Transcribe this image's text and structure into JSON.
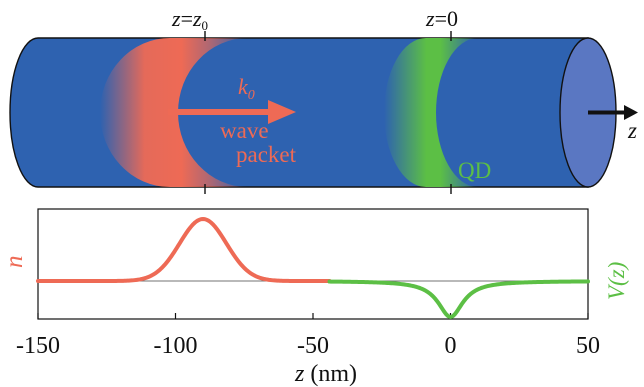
{
  "top_labels": {
    "z0": {
      "z": "z",
      "eq": "=",
      "zsub": "z",
      "sub": "0"
    },
    "zzero": {
      "z": "z",
      "eq": "=0"
    }
  },
  "cylinder": {
    "body_color": "#2e62b0",
    "end_cap_color": "#5a77c2",
    "wave_color": "#ee6a55",
    "qd_color": "#5cbf45"
  },
  "annotations": {
    "k_label": "k",
    "k_sub": "0",
    "wave_line1": "wave",
    "wave_line2": "packet",
    "qd_label": "QD",
    "axis_arrow_label": "z"
  },
  "left_axis_label": "n",
  "right_axis_label": "V(z)",
  "x_axis": {
    "label_var": "z",
    "label_unit": " (nm)",
    "ticks": [
      -150,
      -100,
      -50,
      0,
      50
    ],
    "range": [
      -150,
      50
    ]
  },
  "chart_data": {
    "type": "line",
    "xrange": [
      -150,
      50
    ],
    "series": [
      {
        "name": "n",
        "color": "#ee6a55",
        "shape": "gaussian",
        "center": -90,
        "width": 8.5,
        "amplitude": 1.0,
        "domain": [
          -150,
          -44
        ]
      },
      {
        "name": "V(z)",
        "color": "#5cbf45",
        "shape": "well",
        "center": 0,
        "width": 5.5,
        "amplitude": -0.58,
        "domain": [
          -44,
          50
        ]
      }
    ]
  }
}
